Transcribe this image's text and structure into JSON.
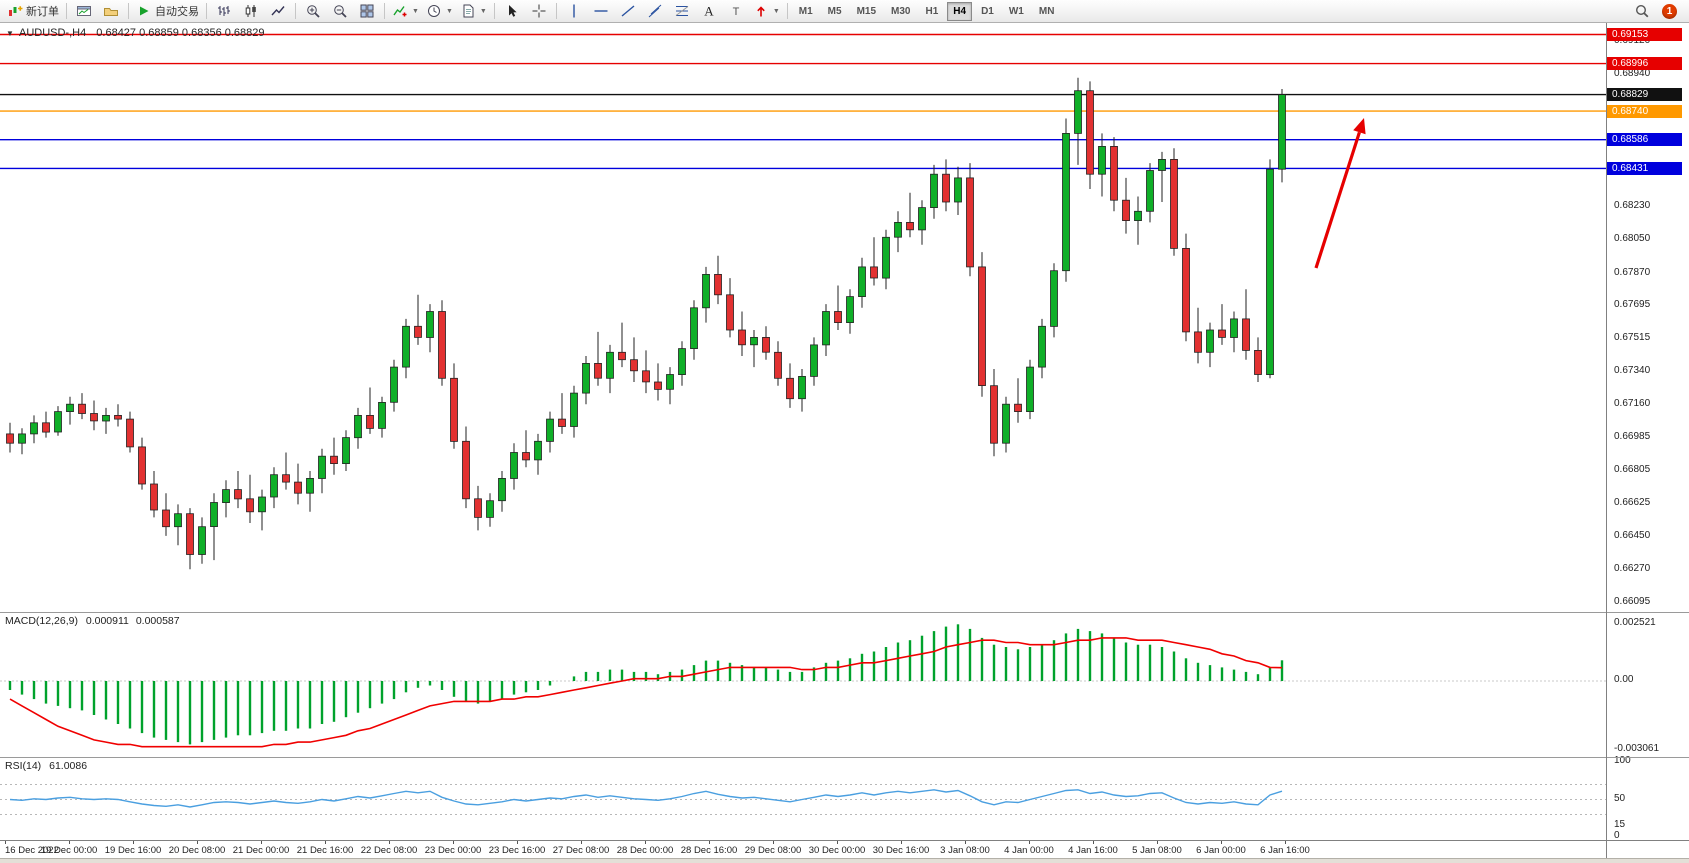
{
  "toolbar": {
    "new_order_label": "新订单",
    "autotrade_label": "自动交易",
    "notification_count": "1",
    "active_timeframe": "H4",
    "timeframes": [
      "M1",
      "M5",
      "M15",
      "M30",
      "H1",
      "H4",
      "D1",
      "W1",
      "MN"
    ],
    "items": [
      {
        "name": "new-order",
        "icon": "new-order",
        "label": "新订单"
      },
      {
        "sep": true
      },
      {
        "name": "charts-window",
        "icon": "charts-window"
      },
      {
        "name": "profiles",
        "icon": "profiles"
      },
      {
        "sep": true
      },
      {
        "name": "autotrading",
        "icon": "autotrading",
        "label": "自动交易"
      },
      {
        "sep": true
      },
      {
        "name": "bar-chart",
        "icon": "bar-chart"
      },
      {
        "name": "candlestick-chart",
        "icon": "candle-chart"
      },
      {
        "name": "line-chart",
        "icon": "line-chart"
      },
      {
        "sep": true
      },
      {
        "name": "zoom-in",
        "icon": "zoom-in"
      },
      {
        "name": "zoom-out",
        "icon": "zoom-out"
      },
      {
        "name": "tile-windows",
        "icon": "tile-windows"
      },
      {
        "sep": true
      },
      {
        "name": "indicators",
        "icon": "indicators",
        "dropdown": true
      },
      {
        "name": "periods",
        "icon": "periods",
        "dropdown": true
      },
      {
        "name": "templates",
        "icon": "templates",
        "dropdown": true
      },
      {
        "sep": true
      },
      {
        "name": "cursor",
        "icon": "cursor"
      },
      {
        "name": "crosshair",
        "icon": "crosshair"
      },
      {
        "sep": true
      },
      {
        "name": "vertical-line",
        "icon": "vline"
      },
      {
        "name": "horizontal-line",
        "icon": "hline"
      },
      {
        "name": "trendline",
        "icon": "trendline"
      },
      {
        "name": "equidistant-channel",
        "icon": "channel"
      },
      {
        "name": "fibonacci-retracement",
        "icon": "fibonacci"
      },
      {
        "name": "text",
        "icon": "text"
      },
      {
        "name": "text-label",
        "icon": "label"
      },
      {
        "name": "arrows",
        "icon": "arrows-tool",
        "dropdown": true
      },
      {
        "sep": true
      }
    ]
  },
  "chart": {
    "symbol_period": "AUDUSD-,H4",
    "ohlc_text": "0.68427 0.68859 0.68356 0.68829"
  },
  "chart_data": {
    "type": "candlestick",
    "symbol": "AUDUSD",
    "timeframe": "H4",
    "current_bar": {
      "open": 0.68427,
      "high": 0.68859,
      "low": 0.68356,
      "close": 0.68829
    },
    "price_range": {
      "top": 0.69215,
      "bottom": 0.6604
    },
    "colors": {
      "up": "#0faf28",
      "down": "#e23131",
      "wick": "#222222",
      "line_red": "#e60000",
      "line_orange": "#ff9900",
      "line_blue": "#0000dd",
      "line_black": "#111111",
      "macd_hist": "#00a22c",
      "macd_signal": "#f00000",
      "rsi_line": "#4a9fe0",
      "arrow": "#e60000"
    },
    "y_axis_ticks": [
      "0.69120",
      "0.68940",
      "0.68230",
      "0.68050",
      "0.67870",
      "0.67695",
      "0.67515",
      "0.67340",
      "0.67160",
      "0.66985",
      "0.66805",
      "0.66625",
      "0.66450",
      "0.66270",
      "0.66095"
    ],
    "hlines": [
      {
        "price": 0.69153,
        "label": "0.69153",
        "color": "#e60000"
      },
      {
        "price": 0.68996,
        "label": "0.68996",
        "color": "#e60000"
      },
      {
        "price": 0.68829,
        "label": "0.68829",
        "color": "#111111"
      },
      {
        "price": 0.6874,
        "label": "0.68740",
        "color": "#ff9900"
      },
      {
        "price": 0.68586,
        "label": "0.68586",
        "color": "#0000dd"
      },
      {
        "price": 0.68431,
        "label": "0.68431",
        "color": "#0000dd"
      }
    ],
    "arrow": {
      "from": [
        1316,
        245
      ],
      "to": [
        1364,
        95
      ],
      "color": "#e60000"
    },
    "x_labels": [
      "16 Dec 2022",
      "19 Dec 00:00",
      "19 Dec 16:00",
      "20 Dec 08:00",
      "21 Dec 00:00",
      "21 Dec 16:00",
      "22 Dec 08:00",
      "23 Dec 00:00",
      "23 Dec 16:00",
      "27 Dec 08:00",
      "28 Dec 00:00",
      "28 Dec 16:00",
      "29 Dec 08:00",
      "30 Dec 00:00",
      "30 Dec 16:00",
      "3 Jan 08:00",
      "4 Jan 00:00",
      "4 Jan 16:00",
      "5 Jan 08:00",
      "6 Jan 00:00",
      "6 Jan 16:00"
    ],
    "candles": [
      [
        0.67,
        0.6706,
        0.669,
        0.6695
      ],
      [
        0.6695,
        0.6703,
        0.6689,
        0.67
      ],
      [
        0.67,
        0.671,
        0.6695,
        0.6706
      ],
      [
        0.6706,
        0.6712,
        0.6698,
        0.6701
      ],
      [
        0.6701,
        0.6715,
        0.6699,
        0.6712
      ],
      [
        0.6712,
        0.672,
        0.6705,
        0.6716
      ],
      [
        0.6716,
        0.6722,
        0.6708,
        0.6711
      ],
      [
        0.6711,
        0.6718,
        0.6702,
        0.6707
      ],
      [
        0.6707,
        0.6714,
        0.67,
        0.671
      ],
      [
        0.671,
        0.6716,
        0.6704,
        0.6708
      ],
      [
        0.6708,
        0.6712,
        0.669,
        0.6693
      ],
      [
        0.6693,
        0.6698,
        0.667,
        0.6673
      ],
      [
        0.6673,
        0.668,
        0.6655,
        0.6659
      ],
      [
        0.6659,
        0.6668,
        0.6645,
        0.665
      ],
      [
        0.665,
        0.6662,
        0.664,
        0.6657
      ],
      [
        0.6657,
        0.666,
        0.6627,
        0.6635
      ],
      [
        0.6635,
        0.6655,
        0.663,
        0.665
      ],
      [
        0.665,
        0.6668,
        0.6632,
        0.6663
      ],
      [
        0.6663,
        0.6675,
        0.6655,
        0.667
      ],
      [
        0.667,
        0.668,
        0.666,
        0.6665
      ],
      [
        0.6665,
        0.6678,
        0.6652,
        0.6658
      ],
      [
        0.6658,
        0.667,
        0.6648,
        0.6666
      ],
      [
        0.6666,
        0.6682,
        0.666,
        0.6678
      ],
      [
        0.6678,
        0.669,
        0.667,
        0.6674
      ],
      [
        0.6674,
        0.6684,
        0.6662,
        0.6668
      ],
      [
        0.6668,
        0.668,
        0.6658,
        0.6676
      ],
      [
        0.6676,
        0.6692,
        0.6668,
        0.6688
      ],
      [
        0.6688,
        0.6698,
        0.6678,
        0.6684
      ],
      [
        0.6684,
        0.6702,
        0.668,
        0.6698
      ],
      [
        0.6698,
        0.6714,
        0.6692,
        0.671
      ],
      [
        0.671,
        0.6725,
        0.67,
        0.6703
      ],
      [
        0.6703,
        0.672,
        0.6698,
        0.6717
      ],
      [
        0.6717,
        0.674,
        0.6712,
        0.6736
      ],
      [
        0.6736,
        0.6762,
        0.673,
        0.6758
      ],
      [
        0.6758,
        0.6775,
        0.6748,
        0.6752
      ],
      [
        0.6752,
        0.677,
        0.6744,
        0.6766
      ],
      [
        0.6766,
        0.6772,
        0.6726,
        0.673
      ],
      [
        0.673,
        0.6738,
        0.6692,
        0.6696
      ],
      [
        0.6696,
        0.6704,
        0.666,
        0.6665
      ],
      [
        0.6665,
        0.6672,
        0.6648,
        0.6655
      ],
      [
        0.6655,
        0.6668,
        0.665,
        0.6664
      ],
      [
        0.6664,
        0.668,
        0.6658,
        0.6676
      ],
      [
        0.6676,
        0.6695,
        0.667,
        0.669
      ],
      [
        0.669,
        0.6702,
        0.6682,
        0.6686
      ],
      [
        0.6686,
        0.67,
        0.6678,
        0.6696
      ],
      [
        0.6696,
        0.6712,
        0.669,
        0.6708
      ],
      [
        0.6708,
        0.6722,
        0.67,
        0.6704
      ],
      [
        0.6704,
        0.6726,
        0.6698,
        0.6722
      ],
      [
        0.6722,
        0.6742,
        0.6716,
        0.6738
      ],
      [
        0.6738,
        0.6755,
        0.6726,
        0.673
      ],
      [
        0.673,
        0.6748,
        0.6722,
        0.6744
      ],
      [
        0.6744,
        0.676,
        0.6736,
        0.674
      ],
      [
        0.674,
        0.6752,
        0.6728,
        0.6734
      ],
      [
        0.6734,
        0.6745,
        0.6722,
        0.6728
      ],
      [
        0.6728,
        0.6738,
        0.6718,
        0.6724
      ],
      [
        0.6724,
        0.6736,
        0.6716,
        0.6732
      ],
      [
        0.6732,
        0.675,
        0.6726,
        0.6746
      ],
      [
        0.6746,
        0.6772,
        0.674,
        0.6768
      ],
      [
        0.6768,
        0.679,
        0.676,
        0.6786
      ],
      [
        0.6786,
        0.6796,
        0.677,
        0.6775
      ],
      [
        0.6775,
        0.6784,
        0.6752,
        0.6756
      ],
      [
        0.6756,
        0.6766,
        0.6742,
        0.6748
      ],
      [
        0.6748,
        0.6756,
        0.6736,
        0.6752
      ],
      [
        0.6752,
        0.6758,
        0.674,
        0.6744
      ],
      [
        0.6744,
        0.675,
        0.6726,
        0.673
      ],
      [
        0.673,
        0.6738,
        0.6714,
        0.6719
      ],
      [
        0.6719,
        0.6735,
        0.6712,
        0.6731
      ],
      [
        0.6731,
        0.6752,
        0.6726,
        0.6748
      ],
      [
        0.6748,
        0.677,
        0.6742,
        0.6766
      ],
      [
        0.6766,
        0.678,
        0.6756,
        0.676
      ],
      [
        0.676,
        0.6778,
        0.6754,
        0.6774
      ],
      [
        0.6774,
        0.6795,
        0.6768,
        0.679
      ],
      [
        0.679,
        0.6806,
        0.678,
        0.6784
      ],
      [
        0.6784,
        0.681,
        0.6778,
        0.6806
      ],
      [
        0.6806,
        0.682,
        0.6798,
        0.6814
      ],
      [
        0.6814,
        0.683,
        0.6806,
        0.681
      ],
      [
        0.681,
        0.6826,
        0.6802,
        0.6822
      ],
      [
        0.6822,
        0.6845,
        0.6816,
        0.684
      ],
      [
        0.684,
        0.6848,
        0.682,
        0.6825
      ],
      [
        0.6825,
        0.6844,
        0.6818,
        0.6838
      ],
      [
        0.6838,
        0.6846,
        0.6785,
        0.679
      ],
      [
        0.679,
        0.6798,
        0.672,
        0.6726
      ],
      [
        0.6726,
        0.6735,
        0.6688,
        0.6695
      ],
      [
        0.6695,
        0.672,
        0.669,
        0.6716
      ],
      [
        0.6716,
        0.673,
        0.6706,
        0.6712
      ],
      [
        0.6712,
        0.674,
        0.6708,
        0.6736
      ],
      [
        0.6736,
        0.6762,
        0.673,
        0.6758
      ],
      [
        0.6758,
        0.6792,
        0.6752,
        0.6788
      ],
      [
        0.6788,
        0.687,
        0.6782,
        0.6862
      ],
      [
        0.6862,
        0.6892,
        0.6845,
        0.6885
      ],
      [
        0.6885,
        0.689,
        0.6832,
        0.684
      ],
      [
        0.684,
        0.6862,
        0.6828,
        0.6855
      ],
      [
        0.6855,
        0.686,
        0.682,
        0.6826
      ],
      [
        0.6826,
        0.6838,
        0.6808,
        0.6815
      ],
      [
        0.6815,
        0.6828,
        0.6802,
        0.682
      ],
      [
        0.682,
        0.6846,
        0.6814,
        0.6842
      ],
      [
        0.6842,
        0.6852,
        0.6825,
        0.6848
      ],
      [
        0.6848,
        0.6854,
        0.6796,
        0.68
      ],
      [
        0.68,
        0.6808,
        0.675,
        0.6755
      ],
      [
        0.6755,
        0.6768,
        0.6738,
        0.6744
      ],
      [
        0.6744,
        0.676,
        0.6736,
        0.6756
      ],
      [
        0.6756,
        0.677,
        0.6748,
        0.6752
      ],
      [
        0.6752,
        0.6766,
        0.6744,
        0.6762
      ],
      [
        0.6762,
        0.6778,
        0.674,
        0.6745
      ],
      [
        0.6745,
        0.6752,
        0.6728,
        0.6732
      ],
      [
        0.6732,
        0.6848,
        0.673,
        0.68427
      ],
      [
        0.68427,
        0.68859,
        0.68356,
        0.68829
      ]
    ],
    "macd": {
      "label": "MACD(12,26,9)",
      "value_main": "0.000911",
      "value_signal": "0.000587",
      "range": {
        "max": 0.003,
        "min": -0.0034
      },
      "axis": [
        {
          "v": 0.002521,
          "t": "0.002521"
        },
        {
          "v": 0,
          "t": "0.00"
        },
        {
          "v": -0.003061,
          "t": "-0.003061"
        }
      ],
      "histogram": [
        -0.0004,
        -0.0006,
        -0.0008,
        -0.001,
        -0.0011,
        -0.0012,
        -0.0013,
        -0.0015,
        -0.0017,
        -0.0019,
        -0.0021,
        -0.0023,
        -0.0025,
        -0.0026,
        -0.0027,
        -0.0028,
        -0.0027,
        -0.0026,
        -0.0025,
        -0.0024,
        -0.0024,
        -0.0023,
        -0.0022,
        -0.0022,
        -0.0021,
        -0.0021,
        -0.0019,
        -0.0018,
        -0.0016,
        -0.0014,
        -0.0012,
        -0.001,
        -0.0008,
        -0.0005,
        -0.0003,
        -0.0002,
        -0.0004,
        -0.0007,
        -0.0009,
        -0.001,
        -0.0009,
        -0.0008,
        -0.0006,
        -0.0005,
        -0.0004,
        -0.0002,
        0.0,
        0.0002,
        0.0004,
        0.0004,
        0.0005,
        0.0005,
        0.0004,
        0.0004,
        0.0003,
        0.0004,
        0.0005,
        0.0007,
        0.0009,
        0.0009,
        0.0008,
        0.0007,
        0.0006,
        0.0006,
        0.0005,
        0.0004,
        0.0004,
        0.0006,
        0.0008,
        0.0009,
        0.001,
        0.0012,
        0.0013,
        0.0015,
        0.0017,
        0.0018,
        0.002,
        0.0022,
        0.0024,
        0.0025,
        0.0023,
        0.0019,
        0.0016,
        0.0015,
        0.0014,
        0.0015,
        0.0016,
        0.0018,
        0.0021,
        0.0023,
        0.0022,
        0.0021,
        0.0019,
        0.0017,
        0.0016,
        0.0016,
        0.0015,
        0.0013,
        0.001,
        0.0008,
        0.0007,
        0.0006,
        0.0005,
        0.0004,
        0.0003,
        0.0006,
        0.000911
      ],
      "signal": [
        -0.0008,
        -0.0011,
        -0.0014,
        -0.0017,
        -0.002,
        -0.0022,
        -0.0024,
        -0.0026,
        -0.0027,
        -0.0028,
        -0.0028,
        -0.0029,
        -0.0029,
        -0.0029,
        -0.0029,
        -0.0029,
        -0.0029,
        -0.0029,
        -0.0029,
        -0.0029,
        -0.0029,
        -0.0029,
        -0.0028,
        -0.0028,
        -0.0027,
        -0.0027,
        -0.0026,
        -0.0025,
        -0.0024,
        -0.0022,
        -0.0021,
        -0.0019,
        -0.0017,
        -0.0015,
        -0.0013,
        -0.0011,
        -0.001,
        -0.0009,
        -0.0009,
        -0.0009,
        -0.0009,
        -0.0008,
        -0.0008,
        -0.0007,
        -0.0007,
        -0.0006,
        -0.0005,
        -0.0004,
        -0.0003,
        -0.0002,
        -0.0001,
        0.0,
        0.0001,
        0.0001,
        0.0001,
        0.0002,
        0.0002,
        0.0003,
        0.0004,
        0.0005,
        0.0006,
        0.0006,
        0.0006,
        0.0006,
        0.0006,
        0.0006,
        0.0005,
        0.0005,
        0.0006,
        0.0006,
        0.0007,
        0.0008,
        0.0008,
        0.0009,
        0.001,
        0.0011,
        0.0012,
        0.0013,
        0.0015,
        0.0016,
        0.0017,
        0.0018,
        0.0018,
        0.0017,
        0.0017,
        0.0016,
        0.0016,
        0.0016,
        0.0017,
        0.0018,
        0.0018,
        0.0019,
        0.0019,
        0.0019,
        0.0018,
        0.0018,
        0.0018,
        0.0017,
        0.0016,
        0.0015,
        0.0014,
        0.0012,
        0.0011,
        0.0009,
        0.0008,
        0.0006,
        0.000587
      ]
    },
    "rsi": {
      "label": "RSI(14)",
      "value_text": "61.0086",
      "range": [
        0,
        100
      ],
      "levels": [
        70,
        50,
        30
      ],
      "axis": [
        {
          "v": 100,
          "t": "100"
        },
        {
          "v": 50,
          "t": "50"
        },
        {
          "v": 15,
          "t": "15"
        },
        {
          "v": 0,
          "t": "0"
        }
      ],
      "values": [
        50,
        49,
        51,
        50,
        52,
        53,
        51,
        50,
        51,
        50,
        47,
        44,
        42,
        41,
        43,
        40,
        43,
        46,
        47,
        46,
        44,
        46,
        48,
        46,
        45,
        47,
        50,
        48,
        51,
        54,
        52,
        55,
        58,
        61,
        59,
        61,
        53,
        48,
        44,
        43,
        45,
        47,
        50,
        48,
        50,
        52,
        51,
        54,
        56,
        53,
        55,
        53,
        51,
        50,
        49,
        51,
        54,
        58,
        61,
        57,
        54,
        52,
        53,
        51,
        49,
        47,
        50,
        53,
        56,
        54,
        56,
        59,
        56,
        59,
        61,
        59,
        61,
        63,
        60,
        62,
        55,
        47,
        43,
        47,
        46,
        50,
        54,
        58,
        62,
        63,
        58,
        60,
        56,
        54,
        55,
        58,
        59,
        52,
        46,
        44,
        46,
        45,
        47,
        44,
        43,
        56,
        61.0086
      ]
    }
  }
}
